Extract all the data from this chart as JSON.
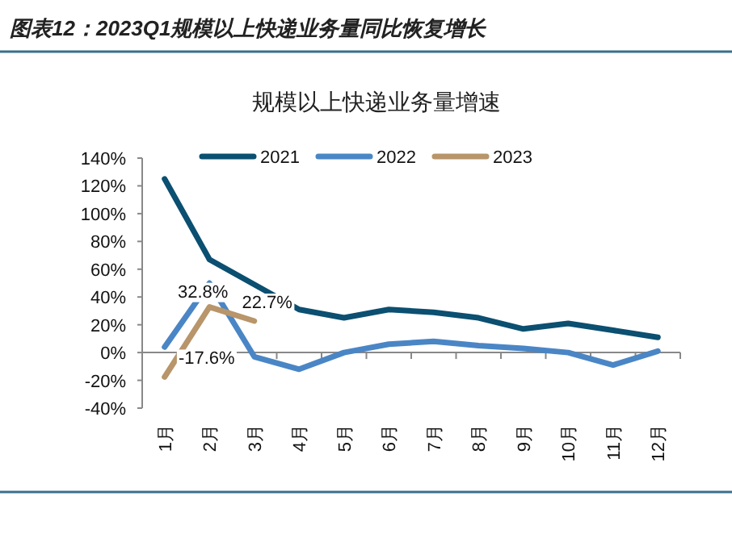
{
  "chart_data": {
    "type": "line",
    "title": "图表12：2023Q1规模以上快递业务量同比恢复增长",
    "subtitle": "规模以上快递业务量增速",
    "categories": [
      "1月",
      "2月",
      "3月",
      "4月",
      "5月",
      "6月",
      "7月",
      "8月",
      "9月",
      "10月",
      "11月",
      "12月"
    ],
    "series": [
      {
        "name": "2021",
        "color": "#0b4f71",
        "values": [
          125,
          67,
          49,
          31,
          25,
          31,
          29,
          25,
          17,
          21,
          16,
          11
        ]
      },
      {
        "name": "2022",
        "color": "#4a86c5",
        "values": [
          4,
          50,
          -3,
          -12,
          0,
          6,
          8,
          5,
          3,
          0,
          -9,
          1
        ]
      },
      {
        "name": "2023",
        "color": "#b8956a",
        "values": [
          -17.6,
          32.8,
          22.7,
          null,
          null,
          null,
          null,
          null,
          null,
          null,
          null,
          null
        ],
        "value_labels": [
          "-17.6%",
          "32.8%",
          "22.7%",
          null,
          null,
          null,
          null,
          null,
          null,
          null,
          null,
          null
        ]
      }
    ],
    "ylim": [
      -40,
      140
    ],
    "yticks": [
      {
        "value": -40,
        "label": "-40%"
      },
      {
        "value": -20,
        "label": "-20%"
      },
      {
        "value": 0,
        "label": "0%"
      },
      {
        "value": 20,
        "label": "20%"
      },
      {
        "value": 40,
        "label": "40%"
      },
      {
        "value": 60,
        "label": "60%"
      },
      {
        "value": 80,
        "label": "80%"
      },
      {
        "value": 100,
        "label": "100%"
      },
      {
        "value": 120,
        "label": "120%"
      },
      {
        "value": 140,
        "label": "140%"
      }
    ],
    "legend": "top",
    "marker": "none",
    "line_style": "solid"
  }
}
